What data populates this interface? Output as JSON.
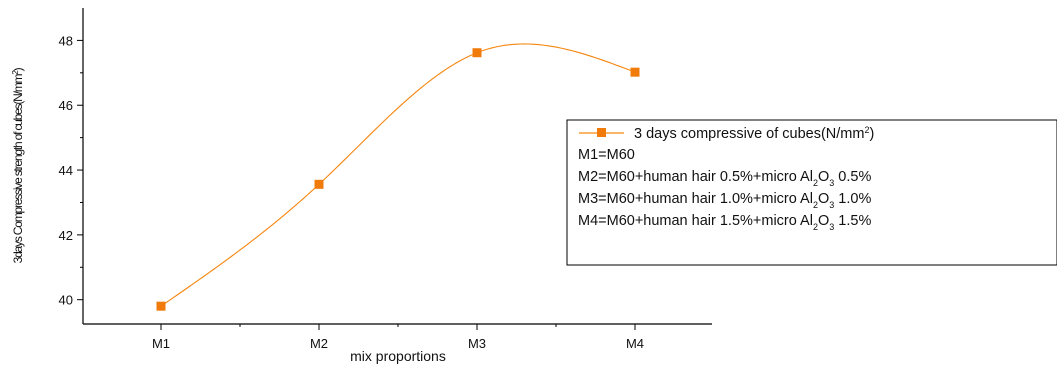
{
  "colors": {
    "series": "#f5860f",
    "marker": "#f07a0a",
    "axis": "#000000"
  },
  "chart_data": {
    "type": "line",
    "x_label": "mix proportions",
    "y_label": "3 days Compressive strength of cubes (N/mm²)",
    "y_label_parts": {
      "prefix": "3days Compressive strength of cubes(N/mm",
      "superscript": "2",
      "suffix": ")"
    },
    "categories": [
      "M1",
      "M2",
      "M3",
      "M4"
    ],
    "series": [
      {
        "name": "3 days compressive of cubes(N/mm²)",
        "values": [
          39.8,
          43.56,
          47.62,
          47.02
        ]
      }
    ],
    "ylim": [
      39.25,
      49.0
    ],
    "y_ticks": [
      "40",
      "42",
      "44",
      "46",
      "48"
    ],
    "grid": false,
    "legend": {
      "placement": "right",
      "series_label_parts": {
        "prefix": "3 days compressive of cubes(N/mm",
        "superscript": "2",
        "suffix": ")"
      },
      "notes": [
        {
          "text": "M1=M60"
        },
        {
          "prefix": "M2=M60+human hair 0.5%+micro Al",
          "sub1": "2",
          "mid": "O",
          "sub2": "3",
          "suffix": " 0.5%"
        },
        {
          "prefix": "M3=M60+human hair 1.0%+micro Al",
          "sub1": "2",
          "mid": "O",
          "sub2": "3",
          "suffix": " 1.0%"
        },
        {
          "prefix": "M4=M60+human hair 1.5%+micro Al",
          "sub1": "2",
          "mid": "O",
          "sub2": "3",
          "suffix": " 1.5%"
        }
      ]
    }
  }
}
